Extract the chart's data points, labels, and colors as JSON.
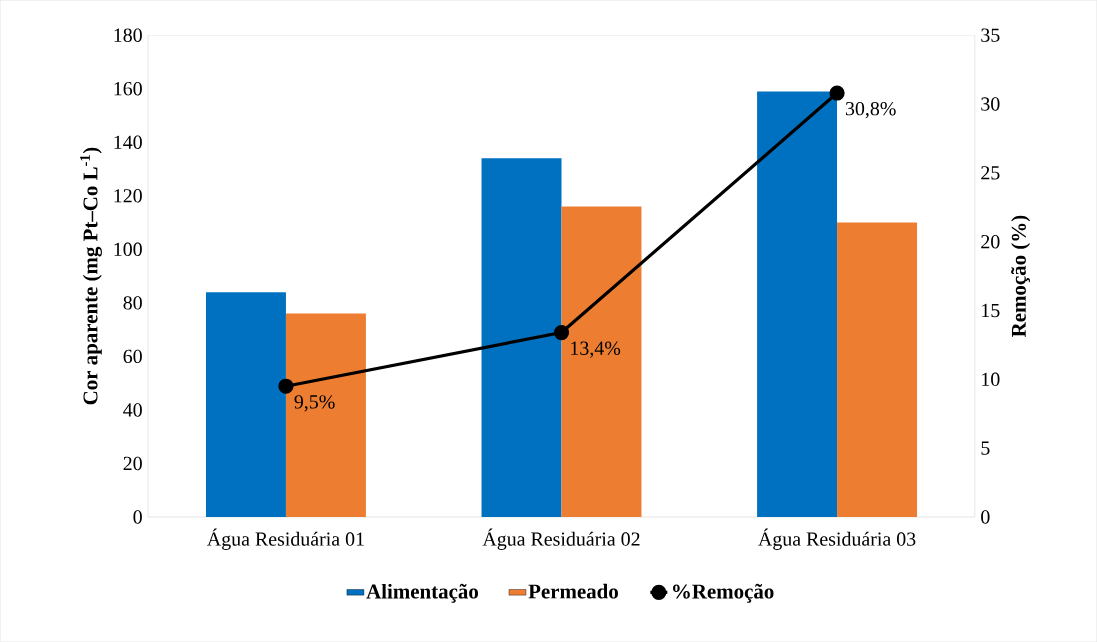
{
  "chart_data": {
    "type": "bar",
    "categories": [
      "Água Residuária 01",
      "Água Residuária 02",
      "Água Residuária 03"
    ],
    "ylabel": "Cor aparente (mg Pt–Co L$^{-1}$)",
    "y2label": "Remoção (%)",
    "ylim": [
      0,
      180
    ],
    "yticks": [
      0,
      20,
      40,
      60,
      80,
      100,
      120,
      140,
      160,
      180
    ],
    "y2lim": [
      0,
      35
    ],
    "y2ticks": [
      0,
      5,
      10,
      15,
      20,
      25,
      30,
      35
    ],
    "legend": "bottom",
    "marker": "circle",
    "series": [
      {
        "name": "Alimentação",
        "color": "#0070c0",
        "values": [
          84,
          134,
          159
        ]
      },
      {
        "name": "Permeado",
        "color": "#ed7d31",
        "values": [
          76,
          116,
          110
        ]
      },
      {
        "name": "%Remoção",
        "type": "line",
        "axis": "y2",
        "color": "#000000",
        "values": [
          9.5,
          13.4,
          30.8
        ],
        "value_labels": [
          "9,5%",
          "13,4%",
          "30,8%"
        ]
      }
    ]
  }
}
